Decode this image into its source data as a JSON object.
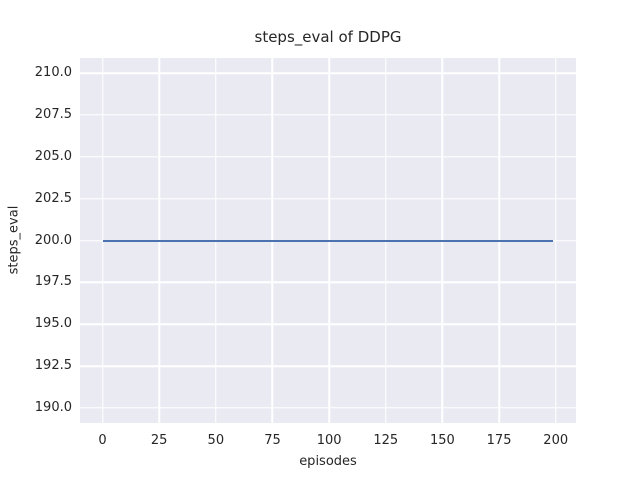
{
  "chart_data": {
    "type": "line",
    "title": "steps_eval of DDPG",
    "xlabel": "episodes",
    "ylabel": "steps_eval",
    "x_tick_labels": [
      "0",
      "25",
      "50",
      "75",
      "100",
      "125",
      "150",
      "175",
      "200"
    ],
    "y_tick_labels": [
      "190.0",
      "192.5",
      "195.0",
      "197.5",
      "200.0",
      "202.5",
      "205.0",
      "207.5",
      "210.0"
    ],
    "xlim": [
      -9.95,
      208.95
    ],
    "ylim": [
      189.1,
      210.9
    ],
    "grid": true,
    "legend": false,
    "plot_background_color": "#EAEAF2",
    "grid_color": "#FFFFFF",
    "text_color": "#262626",
    "series": [
      {
        "name": "steps_eval",
        "color": "#4C72B0",
        "x": [
          0,
          199
        ],
        "values": [
          200,
          200
        ]
      }
    ]
  }
}
